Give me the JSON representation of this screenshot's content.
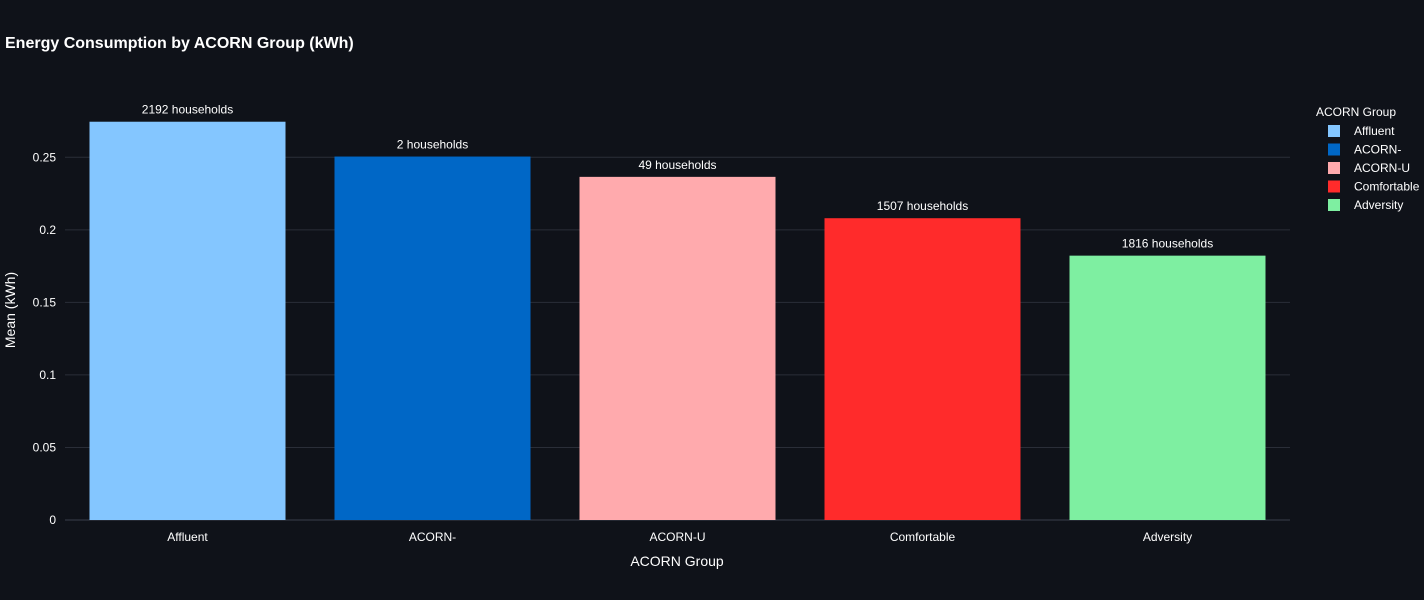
{
  "chart_data": {
    "type": "bar",
    "title": "Energy Consumption by ACORN Group (kWh)",
    "xlabel": "ACORN Group",
    "ylabel": "Mean (kWh)",
    "categories": [
      "Affluent",
      "ACORN-",
      "ACORN-U",
      "Comfortable",
      "Adversity"
    ],
    "values": [
      0.2745,
      0.2505,
      0.2365,
      0.208,
      0.1822
    ],
    "data_labels": [
      "2192 households",
      "2 households",
      "49 households",
      "1507 households",
      "1816 households"
    ],
    "colors": [
      "#84c6ff",
      "#0067c6",
      "#ffaaad",
      "#ff2b2b",
      "#7eefa1"
    ],
    "ylim": [
      0,
      0.275
    ],
    "yticks": [
      0,
      0.05,
      0.1,
      0.15,
      0.2,
      0.25
    ],
    "ytick_labels": [
      "0",
      "0.05",
      "0.1",
      "0.15",
      "0.2",
      "0.25"
    ],
    "grid": true,
    "legend": {
      "title": "ACORN Group",
      "entries": [
        "Affluent",
        "ACORN-",
        "ACORN-U",
        "Comfortable",
        "Adversity"
      ],
      "position": "right"
    }
  }
}
